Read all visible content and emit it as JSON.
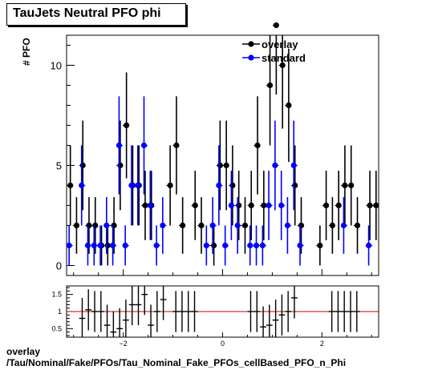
{
  "title": "TauJets Neutral PFO phi",
  "footer": {
    "line1": "overlay",
    "line2": "/Tau/Nominal/Fake/PFOs/Tau_Nominal_Fake_PFOs_cellBased_PFO_n_Phi"
  },
  "chart_data": [
    {
      "type": "scatter",
      "ylabel": "# PFO",
      "xlim": [
        -3.1416,
        3.1416
      ],
      "ylim": [
        -0.5,
        11.5
      ],
      "yticks": [
        0,
        5,
        10
      ],
      "xticks": [
        -2,
        0,
        2
      ],
      "legend_placement": "top-right",
      "series": [
        {
          "name": "overlay",
          "color": "#000000",
          "x": [
            -3.078,
            -2.953,
            -2.827,
            -2.702,
            -2.576,
            -2.45,
            -2.325,
            -2.199,
            -2.073,
            -1.948,
            -1.822,
            -1.696,
            -1.571,
            -1.445,
            -1.319,
            -1.194,
            -1.068,
            -0.942,
            -0.817,
            -0.691,
            -0.565,
            -0.44,
            -0.314,
            -0.188,
            -0.063,
            0.063,
            0.188,
            0.314,
            0.44,
            0.565,
            0.691,
            0.817,
            0.942,
            1.068,
            1.194,
            1.319,
            1.445,
            1.571,
            1.696,
            1.822,
            1.948,
            2.073,
            2.199,
            2.325,
            2.45,
            2.576,
            2.702,
            2.827,
            2.953,
            3.078
          ],
          "values": [
            4,
            2,
            5,
            2,
            2,
            1,
            1,
            2,
            5,
            7,
            4,
            4,
            3,
            3,
            0,
            0,
            4,
            6,
            2,
            0,
            3,
            2,
            0,
            1,
            5,
            5,
            4,
            3,
            2,
            3,
            6,
            3,
            9,
            12,
            10,
            8,
            4,
            2,
            0,
            0,
            1,
            3,
            2,
            3,
            4,
            4,
            2,
            0,
            3,
            3
          ]
        },
        {
          "name": "standard",
          "color": "#0000ff",
          "x": [
            -3.078,
            -2.953,
            -2.827,
            -2.702,
            -2.576,
            -2.45,
            -2.325,
            -2.199,
            -2.073,
            -1.948,
            -1.822,
            -1.696,
            -1.571,
            -1.445,
            -1.319,
            -1.194,
            -1.068,
            -0.942,
            -0.817,
            -0.691,
            -0.565,
            -0.44,
            -0.314,
            -0.188,
            -0.063,
            0.063,
            0.188,
            0.314,
            0.44,
            0.565,
            0.691,
            0.817,
            0.942,
            1.068,
            1.194,
            1.319,
            1.445,
            1.571,
            1.696,
            1.822,
            1.948,
            2.073,
            2.199,
            2.325,
            2.45,
            2.576,
            2.702,
            2.827,
            2.953,
            3.078
          ],
          "values": [
            1,
            0,
            4,
            1,
            1,
            1,
            2,
            1,
            6,
            1,
            4,
            4,
            6,
            3,
            1,
            2,
            0,
            0,
            0,
            0,
            0,
            0,
            1,
            2,
            4,
            1,
            3,
            2,
            0,
            1,
            1,
            1,
            3,
            5,
            3,
            2,
            5,
            1,
            0,
            0,
            0,
            0,
            0,
            0,
            2,
            0,
            0,
            0,
            1,
            0
          ]
        }
      ]
    },
    {
      "type": "scatter",
      "xlim": [
        -3.1416,
        3.1416
      ],
      "ylim": [
        0.25,
        1.75
      ],
      "yticks": [
        0.5,
        1,
        1.5
      ],
      "xticks": [
        -2,
        0,
        2
      ],
      "reference_line": 1,
      "series": [
        {
          "name": "",
          "color": "#000000",
          "x": [
            -2.827,
            -2.702,
            -2.576,
            -2.45,
            -2.325,
            -2.199,
            -2.073,
            -1.948,
            -1.822,
            -1.696,
            -1.571,
            -1.445,
            -1.319,
            -1.194,
            -0.942,
            -0.817,
            -0.691,
            -0.565,
            0.565,
            0.691,
            0.817,
            0.942,
            1.068,
            1.194,
            1.319,
            1.445,
            2.199,
            2.325,
            2.45,
            2.576,
            2.702
          ],
          "values": [
            0.8,
            1.05,
            1.0,
            1.0,
            0.6,
            0.4,
            0.5,
            0.75,
            1.2,
            1.2,
            1.5,
            0.6,
            1.0,
            1.35,
            1.0,
            1.0,
            1.0,
            1.0,
            1.0,
            1.0,
            0.55,
            0.6,
            0.75,
            0.9,
            1.0,
            1.4,
            1.0,
            1.0,
            1.0,
            1.0,
            1.0
          ]
        }
      ]
    }
  ]
}
